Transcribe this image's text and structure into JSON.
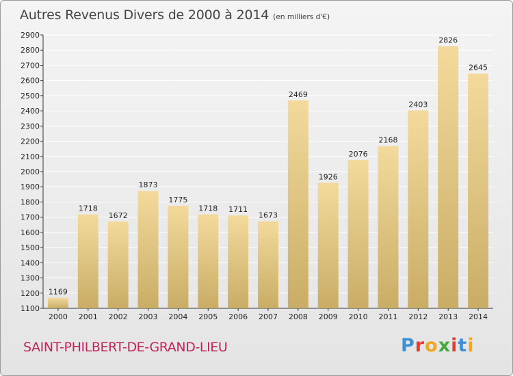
{
  "chart_data": {
    "type": "bar",
    "title": "Autres Revenus Divers de 2000 à 2014",
    "subtitle": "(en milliers d'€)",
    "categories": [
      "2000",
      "2001",
      "2002",
      "2003",
      "2004",
      "2005",
      "2006",
      "2007",
      "2008",
      "2009",
      "2010",
      "2011",
      "2012",
      "2013",
      "2014"
    ],
    "values": [
      1169,
      1718,
      1672,
      1873,
      1775,
      1718,
      1711,
      1673,
      2469,
      1926,
      2076,
      2168,
      2403,
      2826,
      2645
    ],
    "ylim": [
      1100,
      2900
    ],
    "yticks": [
      1100,
      1200,
      1300,
      1400,
      1500,
      1600,
      1700,
      1800,
      1900,
      2000,
      2100,
      2200,
      2300,
      2400,
      2500,
      2600,
      2700,
      2800,
      2900
    ],
    "grid": true,
    "xlabel": "",
    "ylabel": ""
  },
  "footer": {
    "place": "SAINT-PHILBERT-DE-GRAND-LIEU",
    "logo_text": "Proxiti"
  },
  "colors": {
    "bar_light": "#f3da9c",
    "bar_dark": "#c9ad66",
    "grid": "#ffffff",
    "place": "#c0245a"
  },
  "logo_colors": [
    "#3d8fd6",
    "#e63d2e",
    "#f2a81d",
    "#47a83d",
    "#e63d2e",
    "#3d8fd6",
    "#f2a81d"
  ]
}
